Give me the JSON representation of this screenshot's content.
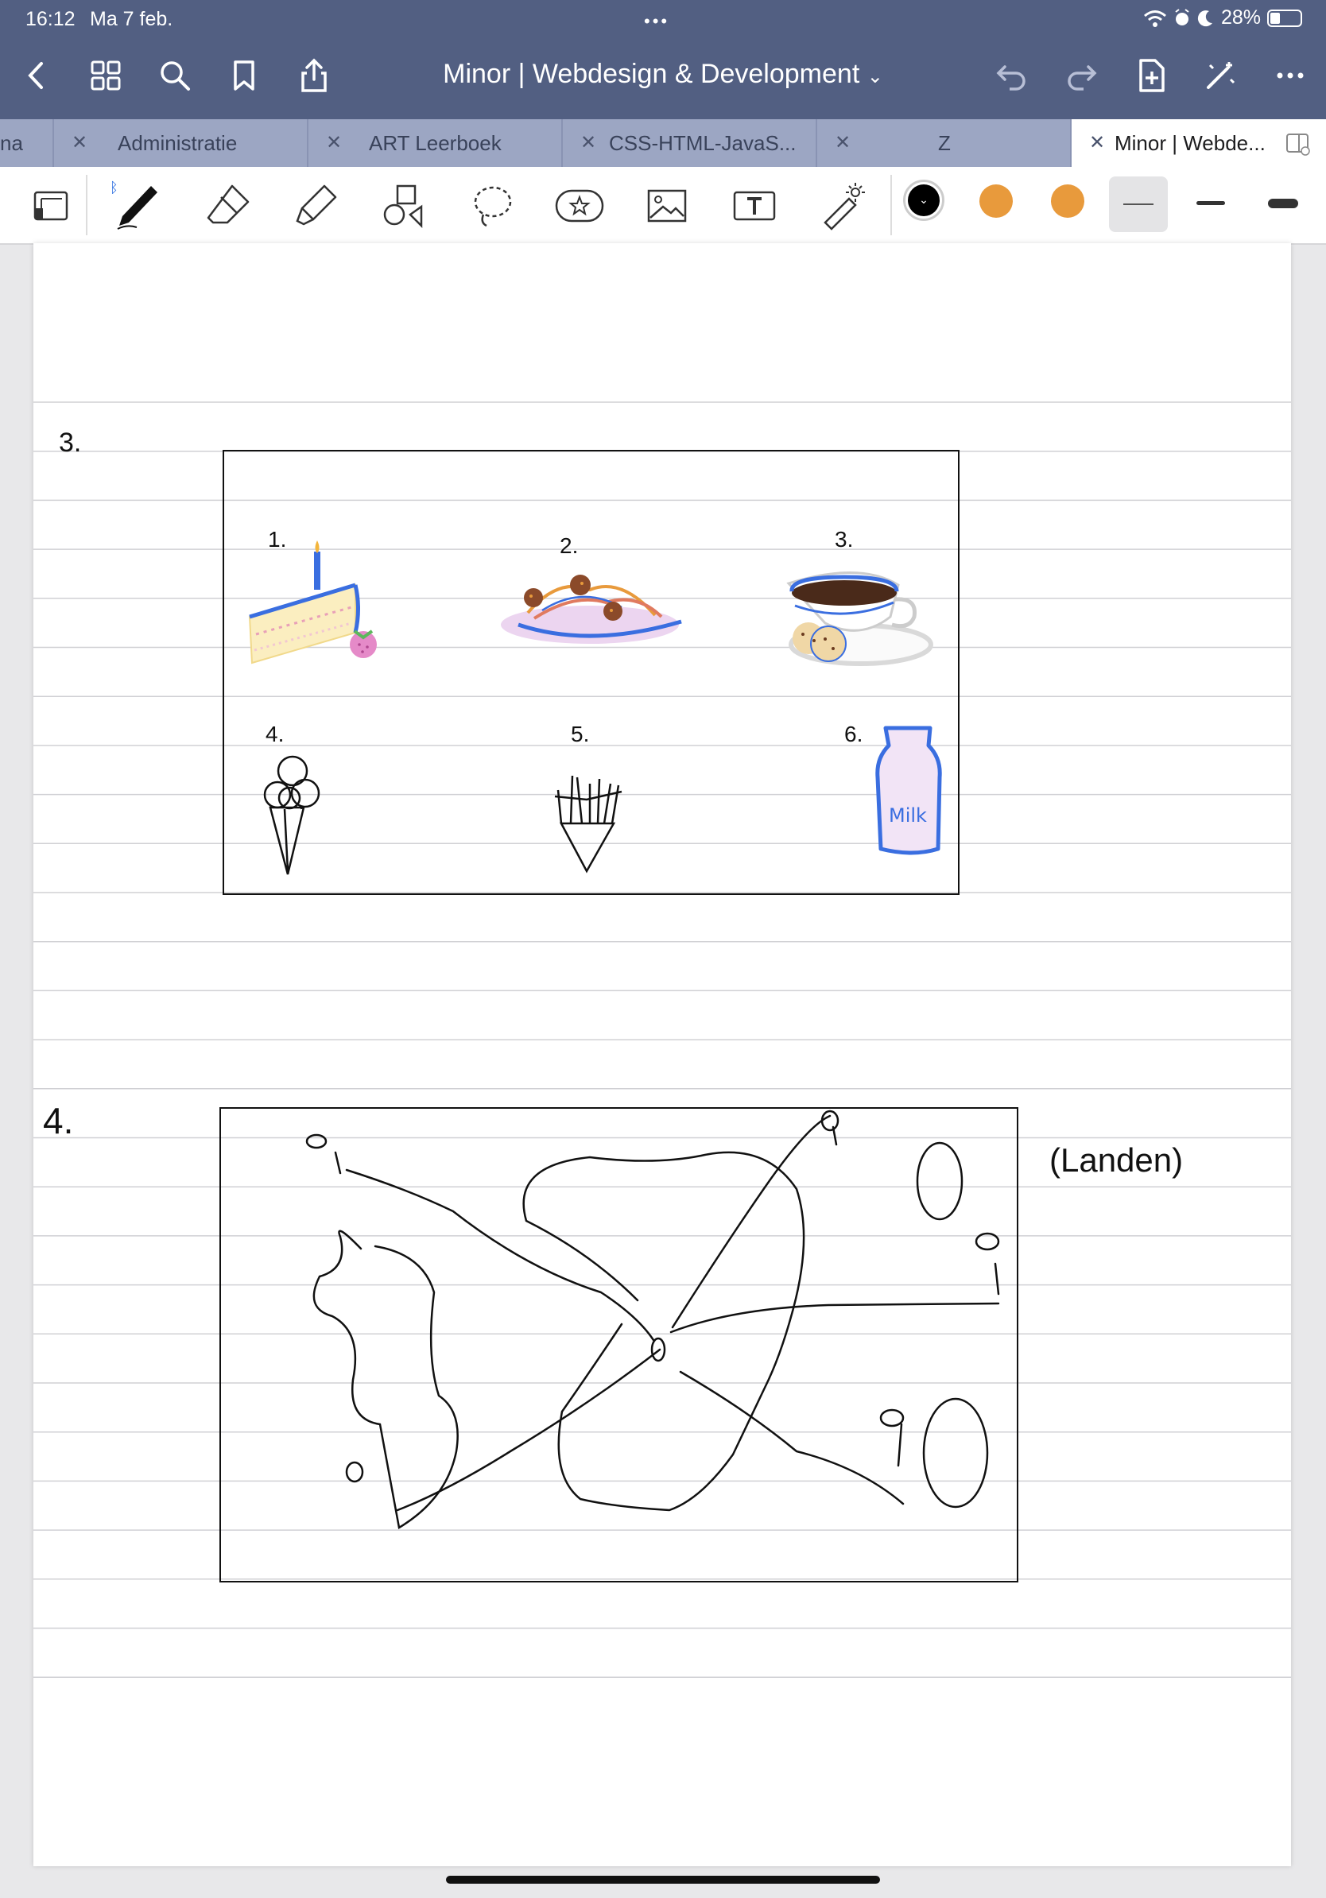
{
  "status": {
    "time": "16:12",
    "date": "Ma 7 feb.",
    "battery": "28%"
  },
  "header": {
    "title": "Minor | Webdesign & Development",
    "title_caret": "⌄"
  },
  "tabs": [
    {
      "label": "na"
    },
    {
      "label": "Administratie"
    },
    {
      "label": "ART Leerboek"
    },
    {
      "label": "CSS-HTML-JavaS..."
    },
    {
      "label": "Z"
    },
    {
      "label": "Minor | Webde..."
    }
  ],
  "toolbar": {
    "colors": [
      "#000000",
      "#e89a3c",
      "#e89a3c"
    ]
  },
  "page": {
    "section3_number": "3.",
    "section4_number": "4.",
    "food_numbers": [
      "1.",
      "2.",
      "3.",
      "4.",
      "5.",
      "6."
    ],
    "milk_label": "Milk",
    "annotation": "(Landen)"
  }
}
